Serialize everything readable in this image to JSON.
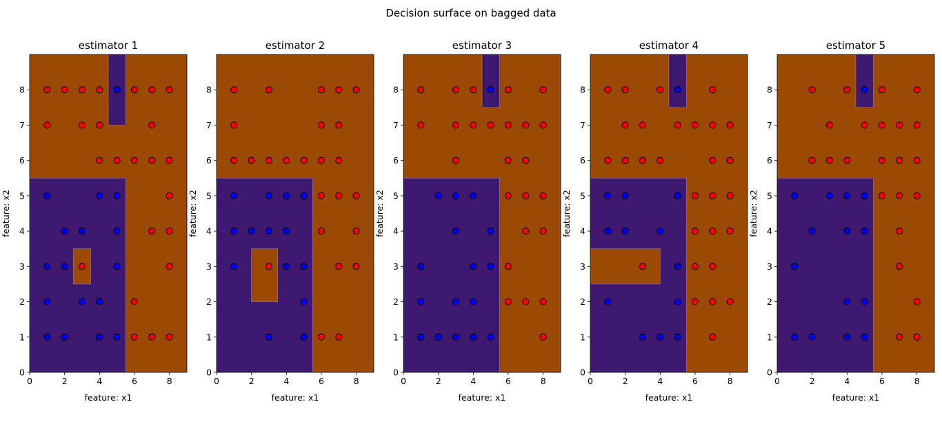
{
  "figure": {
    "title": "Decision surface on bagged data",
    "colors": {
      "class0_region": "#3f186f",
      "class1_region": "#9b4a06",
      "class0_point": "#0000ff",
      "class1_point": "#ff0000",
      "edge": "#000000"
    }
  },
  "chart_data": [
    {
      "type": "scatter",
      "title": "estimator 1",
      "xlabel": "feature: x1",
      "ylabel": "feature: x2",
      "xlim": [
        0,
        9
      ],
      "ylim": [
        0,
        9
      ],
      "xticks": [
        0,
        2,
        4,
        6,
        8
      ],
      "yticks": [
        0,
        1,
        2,
        3,
        4,
        5,
        6,
        7,
        8
      ],
      "background_class": 1,
      "regions": [
        {
          "class": 0,
          "x": [
            0,
            5.5
          ],
          "y": [
            0,
            5.5
          ]
        },
        {
          "class": 1,
          "x": [
            2.5,
            3.5
          ],
          "y": [
            2.5,
            3.5
          ]
        },
        {
          "class": 0,
          "x": [
            4.5,
            5.5
          ],
          "y": [
            7,
            9
          ]
        }
      ],
      "series": [
        {
          "class": 0,
          "points": [
            [
              1,
              5
            ],
            [
              4,
              5
            ],
            [
              5,
              5
            ],
            [
              2,
              4
            ],
            [
              3,
              4
            ],
            [
              5,
              4
            ],
            [
              1,
              3
            ],
            [
              2,
              3
            ],
            [
              5,
              3
            ],
            [
              1,
              2
            ],
            [
              3,
              2
            ],
            [
              4,
              2
            ],
            [
              1,
              1
            ],
            [
              2,
              1
            ],
            [
              4,
              1
            ],
            [
              5,
              1
            ],
            [
              5,
              8
            ]
          ]
        },
        {
          "class": 1,
          "points": [
            [
              1,
              8
            ],
            [
              2,
              8
            ],
            [
              3,
              8
            ],
            [
              4,
              8
            ],
            [
              6,
              8
            ],
            [
              7,
              8
            ],
            [
              8,
              8
            ],
            [
              1,
              7
            ],
            [
              3,
              7
            ],
            [
              4,
              7
            ],
            [
              7,
              7
            ],
            [
              4,
              6
            ],
            [
              5,
              6
            ],
            [
              6,
              6
            ],
            [
              7,
              6
            ],
            [
              8,
              6
            ],
            [
              8,
              5
            ],
            [
              7,
              4
            ],
            [
              8,
              4
            ],
            [
              8,
              3
            ],
            [
              3,
              3
            ],
            [
              6,
              2
            ],
            [
              6,
              1
            ],
            [
              7,
              1
            ],
            [
              8,
              1
            ]
          ]
        }
      ]
    },
    {
      "type": "scatter",
      "title": "estimator 2",
      "xlabel": "feature: x1",
      "ylabel": "feature: x2",
      "xlim": [
        0,
        9
      ],
      "ylim": [
        0,
        9
      ],
      "xticks": [
        0,
        2,
        4,
        6,
        8
      ],
      "yticks": [
        0,
        1,
        2,
        3,
        4,
        5,
        6,
        7,
        8
      ],
      "background_class": 1,
      "regions": [
        {
          "class": 0,
          "x": [
            0,
            5.5
          ],
          "y": [
            0,
            5.5
          ]
        },
        {
          "class": 1,
          "x": [
            2,
            3.5
          ],
          "y": [
            2,
            3.5
          ]
        }
      ],
      "series": [
        {
          "class": 0,
          "points": [
            [
              1,
              5
            ],
            [
              3,
              5
            ],
            [
              4,
              5
            ],
            [
              5,
              5
            ],
            [
              1,
              4
            ],
            [
              2,
              4
            ],
            [
              3,
              4
            ],
            [
              4,
              4
            ],
            [
              1,
              3
            ],
            [
              4,
              3
            ],
            [
              5,
              3
            ],
            [
              5,
              2
            ],
            [
              3,
              1
            ],
            [
              5,
              1
            ]
          ]
        },
        {
          "class": 1,
          "points": [
            [
              1,
              8
            ],
            [
              3,
              8
            ],
            [
              6,
              8
            ],
            [
              7,
              8
            ],
            [
              8,
              8
            ],
            [
              1,
              7
            ],
            [
              6,
              7
            ],
            [
              7,
              7
            ],
            [
              1,
              6
            ],
            [
              2,
              6
            ],
            [
              3,
              6
            ],
            [
              4,
              6
            ],
            [
              5,
              6
            ],
            [
              6,
              6
            ],
            [
              7,
              6
            ],
            [
              6,
              5
            ],
            [
              7,
              5
            ],
            [
              8,
              5
            ],
            [
              6,
              4
            ],
            [
              8,
              4
            ],
            [
              3,
              3
            ],
            [
              7,
              3
            ],
            [
              8,
              3
            ],
            [
              6,
              1
            ],
            [
              7,
              1
            ]
          ]
        }
      ]
    },
    {
      "type": "scatter",
      "title": "estimator 3",
      "xlabel": "feature: x1",
      "ylabel": "feature: x2",
      "xlim": [
        0,
        9
      ],
      "ylim": [
        0,
        9
      ],
      "xticks": [
        0,
        2,
        4,
        6,
        8
      ],
      "yticks": [
        0,
        1,
        2,
        3,
        4,
        5,
        6,
        7,
        8
      ],
      "background_class": 1,
      "regions": [
        {
          "class": 0,
          "x": [
            0,
            5.5
          ],
          "y": [
            0,
            5.5
          ]
        },
        {
          "class": 0,
          "x": [
            4.5,
            5.5
          ],
          "y": [
            7.5,
            9
          ]
        }
      ],
      "series": [
        {
          "class": 0,
          "points": [
            [
              5,
              8
            ],
            [
              2,
              5
            ],
            [
              3,
              5
            ],
            [
              4,
              5
            ],
            [
              3,
              4
            ],
            [
              5,
              4
            ],
            [
              1,
              3
            ],
            [
              4,
              3
            ],
            [
              5,
              3
            ],
            [
              1,
              2
            ],
            [
              3,
              2
            ],
            [
              4,
              2
            ],
            [
              1,
              1
            ],
            [
              2,
              1
            ],
            [
              3,
              1
            ],
            [
              4,
              1
            ],
            [
              5,
              1
            ]
          ]
        },
        {
          "class": 1,
          "points": [
            [
              1,
              8
            ],
            [
              3,
              8
            ],
            [
              4,
              8
            ],
            [
              6,
              8
            ],
            [
              8,
              8
            ],
            [
              1,
              7
            ],
            [
              3,
              7
            ],
            [
              4,
              7
            ],
            [
              5,
              7
            ],
            [
              6,
              7
            ],
            [
              7,
              7
            ],
            [
              8,
              7
            ],
            [
              3,
              6
            ],
            [
              6,
              6
            ],
            [
              7,
              6
            ],
            [
              6,
              5
            ],
            [
              7,
              5
            ],
            [
              8,
              5
            ],
            [
              7,
              4
            ],
            [
              8,
              4
            ],
            [
              6,
              3
            ],
            [
              6,
              2
            ],
            [
              7,
              2
            ],
            [
              8,
              2
            ],
            [
              8,
              1
            ]
          ]
        }
      ]
    },
    {
      "type": "scatter",
      "title": "estimator 4",
      "xlabel": "feature: x1",
      "ylabel": "feature: x2",
      "xlim": [
        0,
        9
      ],
      "ylim": [
        0,
        9
      ],
      "xticks": [
        0,
        2,
        4,
        6,
        8
      ],
      "yticks": [
        0,
        1,
        2,
        3,
        4,
        5,
        6,
        7,
        8
      ],
      "background_class": 1,
      "regions": [
        {
          "class": 0,
          "x": [
            0,
            5.5
          ],
          "y": [
            0,
            5.5
          ]
        },
        {
          "class": 1,
          "x": [
            0,
            4
          ],
          "y": [
            2.5,
            3.5
          ]
        },
        {
          "class": 0,
          "x": [
            4.5,
            5.5
          ],
          "y": [
            7.5,
            9
          ]
        }
      ],
      "series": [
        {
          "class": 0,
          "points": [
            [
              5,
              8
            ],
            [
              1,
              5
            ],
            [
              2,
              5
            ],
            [
              5,
              5
            ],
            [
              1,
              4
            ],
            [
              2,
              4
            ],
            [
              4,
              4
            ],
            [
              5,
              3
            ],
            [
              1,
              2
            ],
            [
              5,
              2
            ],
            [
              3,
              1
            ],
            [
              4,
              1
            ],
            [
              5,
              1
            ]
          ]
        },
        {
          "class": 1,
          "points": [
            [
              1,
              8
            ],
            [
              2,
              8
            ],
            [
              4,
              8
            ],
            [
              7,
              8
            ],
            [
              2,
              7
            ],
            [
              3,
              7
            ],
            [
              5,
              7
            ],
            [
              6,
              7
            ],
            [
              7,
              7
            ],
            [
              8,
              7
            ],
            [
              1,
              6
            ],
            [
              2,
              6
            ],
            [
              3,
              6
            ],
            [
              4,
              6
            ],
            [
              7,
              6
            ],
            [
              8,
              6
            ],
            [
              6,
              5
            ],
            [
              7,
              5
            ],
            [
              8,
              5
            ],
            [
              6,
              4
            ],
            [
              7,
              4
            ],
            [
              8,
              4
            ],
            [
              3,
              3
            ],
            [
              6,
              3
            ],
            [
              7,
              3
            ],
            [
              6,
              2
            ],
            [
              7,
              2
            ],
            [
              8,
              2
            ],
            [
              7,
              1
            ]
          ]
        }
      ]
    },
    {
      "type": "scatter",
      "title": "estimator 5",
      "xlabel": "feature: x1",
      "ylabel": "feature: x2",
      "xlim": [
        0,
        9
      ],
      "ylim": [
        0,
        9
      ],
      "xticks": [
        0,
        2,
        4,
        6,
        8
      ],
      "yticks": [
        0,
        1,
        2,
        3,
        4,
        5,
        6,
        7,
        8
      ],
      "background_class": 1,
      "regions": [
        {
          "class": 0,
          "x": [
            0,
            5.5
          ],
          "y": [
            0,
            5.5
          ]
        },
        {
          "class": 0,
          "x": [
            4.5,
            5.5
          ],
          "y": [
            7.5,
            9
          ]
        }
      ],
      "series": [
        {
          "class": 0,
          "points": [
            [
              5,
              8
            ],
            [
              1,
              5
            ],
            [
              3,
              5
            ],
            [
              4,
              5
            ],
            [
              5,
              5
            ],
            [
              2,
              4
            ],
            [
              4,
              4
            ],
            [
              5,
              4
            ],
            [
              1,
              3
            ],
            [
              4,
              2
            ],
            [
              5,
              2
            ],
            [
              1,
              1
            ],
            [
              2,
              1
            ],
            [
              4,
              1
            ],
            [
              5,
              1
            ]
          ]
        },
        {
          "class": 1,
          "points": [
            [
              2,
              8
            ],
            [
              4,
              8
            ],
            [
              6,
              8
            ],
            [
              8,
              8
            ],
            [
              3,
              7
            ],
            [
              5,
              7
            ],
            [
              6,
              7
            ],
            [
              7,
              7
            ],
            [
              8,
              7
            ],
            [
              2,
              6
            ],
            [
              3,
              6
            ],
            [
              4,
              6
            ],
            [
              6,
              6
            ],
            [
              7,
              6
            ],
            [
              8,
              6
            ],
            [
              6,
              5
            ],
            [
              7,
              5
            ],
            [
              8,
              5
            ],
            [
              7,
              4
            ],
            [
              7,
              3
            ],
            [
              8,
              2
            ],
            [
              7,
              1
            ],
            [
              8,
              1
            ]
          ]
        }
      ]
    }
  ]
}
